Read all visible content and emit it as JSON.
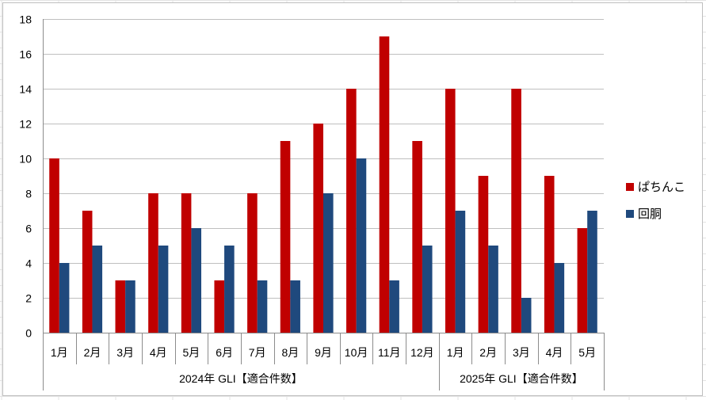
{
  "chart_data": {
    "type": "bar",
    "categories": [
      "1月",
      "2月",
      "3月",
      "4月",
      "5月",
      "6月",
      "7月",
      "8月",
      "9月",
      "10月",
      "11月",
      "12月",
      "1月",
      "2月",
      "3月",
      "4月",
      "5月"
    ],
    "groups": [
      {
        "label": "2024年 GLI【適合件数】",
        "count": 12
      },
      {
        "label": "2025年 GLI【適合件数】",
        "count": 5
      }
    ],
    "series": [
      {
        "name": "ぱちんこ",
        "color": "#c00000",
        "values": [
          10,
          7,
          3,
          8,
          8,
          3,
          8,
          11,
          12,
          14,
          17,
          11,
          14,
          9,
          14,
          9,
          6
        ]
      },
      {
        "name": "回胴",
        "color": "#1f497d",
        "values": [
          4,
          5,
          3,
          5,
          6,
          5,
          3,
          3,
          8,
          10,
          3,
          5,
          7,
          5,
          2,
          4,
          7
        ]
      }
    ],
    "yticks": [
      "0",
      "2",
      "4",
      "6",
      "8",
      "10",
      "12",
      "14",
      "16",
      "18"
    ],
    "ylim": [
      0,
      18
    ],
    "ystep": 2,
    "grid": true,
    "legend": "right"
  }
}
